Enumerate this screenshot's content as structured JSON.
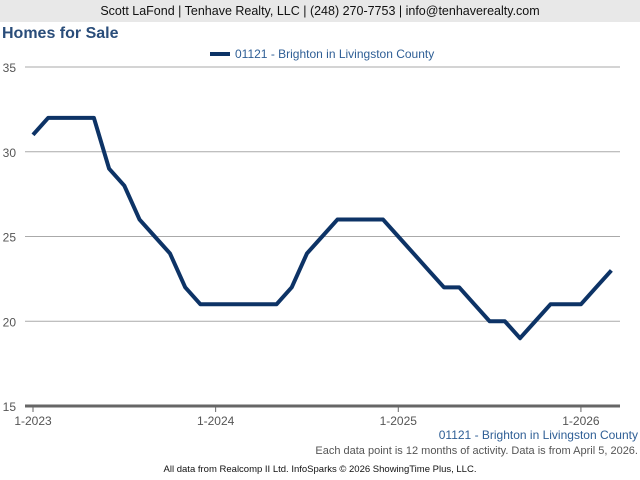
{
  "header": {
    "contact": "Scott LaFond | Tenhave Realty, LLC | (248) 270-7753 | info@tenhaverealty.com"
  },
  "chart_data": {
    "type": "line",
    "title": "Homes for Sale",
    "legend": [
      "01121 - Brighton in Livingston County"
    ],
    "legend_position": "top-center",
    "x": [
      "1-2023",
      "2-2023",
      "3-2023",
      "4-2023",
      "5-2023",
      "6-2023",
      "7-2023",
      "8-2023",
      "9-2023",
      "10-2023",
      "11-2023",
      "12-2023",
      "1-2024",
      "2-2024",
      "3-2024",
      "4-2024",
      "5-2024",
      "6-2024",
      "7-2024",
      "8-2024",
      "9-2024",
      "10-2024",
      "11-2024",
      "12-2024",
      "1-2025",
      "2-2025",
      "3-2025",
      "4-2025",
      "5-2025",
      "6-2025",
      "7-2025",
      "8-2025",
      "9-2025",
      "10-2025",
      "11-2025",
      "12-2025",
      "1-2026",
      "2-2026",
      "3-2026"
    ],
    "series": [
      {
        "name": "01121 - Brighton in Livingston County",
        "color": "#0d3366",
        "values": [
          31,
          32,
          32,
          32,
          32,
          29,
          28,
          26,
          25,
          24,
          22,
          21,
          21,
          21,
          21,
          21,
          21,
          22,
          24,
          25,
          26,
          26,
          26,
          26,
          25,
          24,
          23,
          22,
          22,
          21,
          20,
          20,
          19,
          20,
          21,
          21,
          21,
          22,
          23
        ]
      }
    ],
    "xticks": [
      "1-2023",
      "1-2024",
      "1-2025",
      "1-2026"
    ],
    "yticks": [
      15,
      20,
      25,
      30,
      35
    ],
    "ylim": [
      15,
      35
    ],
    "grid": true,
    "source_label": "01121 - Brighton in Livingston County",
    "note": "Each data point is 12 months of activity. Data is from April 5, 2026."
  },
  "footer": "All data from Realcomp II Ltd. InfoSparks © 2026 ShowingTime Plus, LLC."
}
